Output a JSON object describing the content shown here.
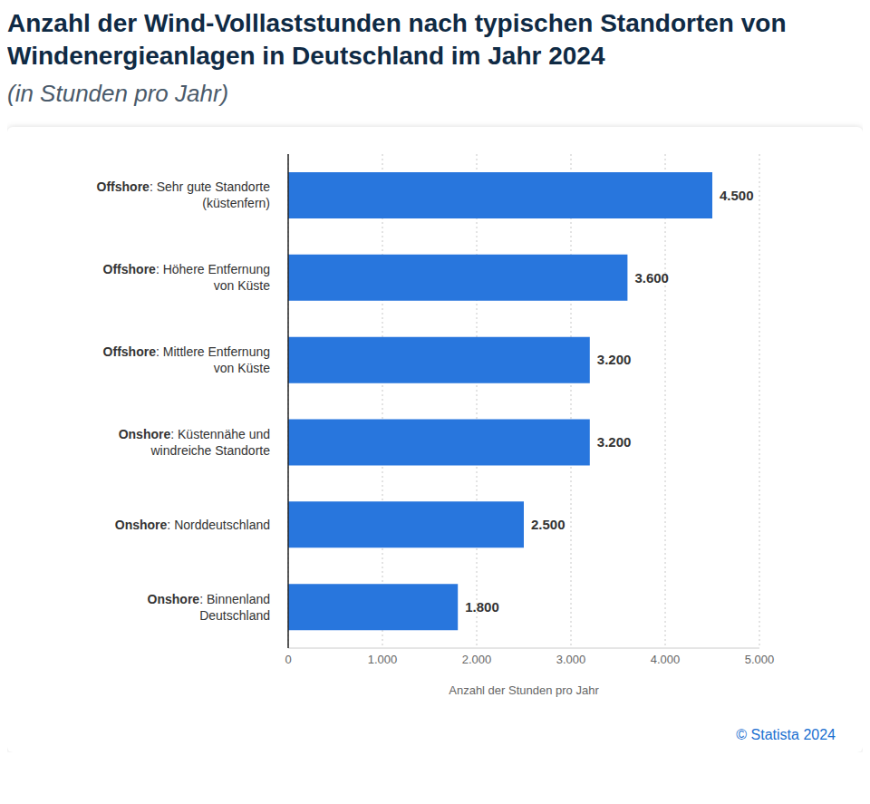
{
  "chart_data": {
    "type": "bar",
    "orientation": "horizontal",
    "title": "Anzahl der Wind-Volllaststunden nach typischen Standorten von Windenergieanlagen in Deutschland im Jahr 2024",
    "subtitle": "(in Stunden pro Jahr)",
    "categories": [
      "Offshore: Sehr gute Standorte (küstenfern)",
      "Offshore: Höhere Entfernung von Küste",
      "Offshore: Mittlere Entfernung von Küste",
      "Onshore: Küstennähe und windreiche Standorte",
      "Onshore: Norddeutschland",
      "Onshore: Binnenland Deutschland"
    ],
    "values": [
      4500,
      3600,
      3200,
      3200,
      2500,
      1800
    ],
    "value_labels": [
      "4.500",
      "3.600",
      "3.200",
      "3.200",
      "2.500",
      "1.800"
    ],
    "color": "#2876dd",
    "xlim": [
      0,
      5000
    ],
    "xticks": [
      0,
      {
        "value": 1000,
        "label": "1.000"
      },
      {
        "value": 2000,
        "label": "2.000"
      },
      {
        "value": 3000,
        "label": "3.000"
      },
      {
        "value": 4000,
        "label": "4.000"
      },
      {
        "value": 5000,
        "label": "5.000"
      }
    ],
    "x_label": "Anzahl der Stunden pro Jahr",
    "grid": true,
    "data_labels": true,
    "source": "© Statista 2024"
  }
}
